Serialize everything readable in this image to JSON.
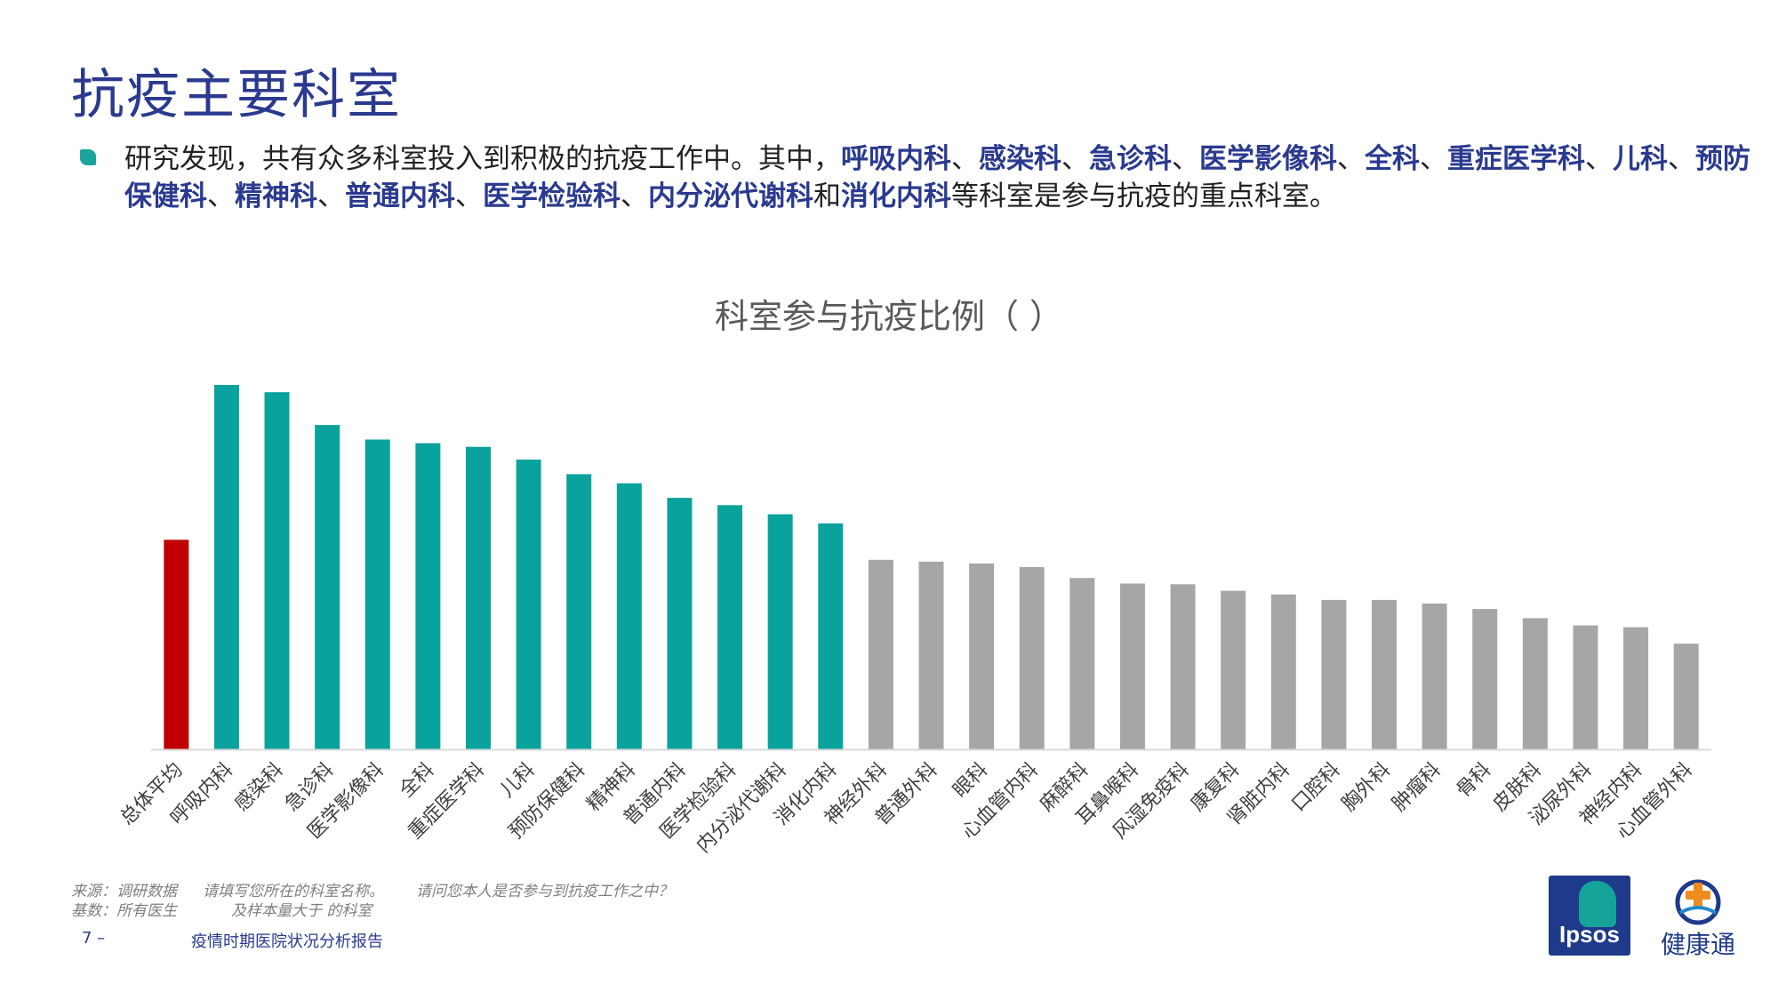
{
  "header": {
    "title": "抗疫主要科室"
  },
  "summary": {
    "p1": "研究发现，共有众多科室投入到积极的抗疫工作中。其中，",
    "h1": "呼吸内科",
    "s1": "、",
    "h2": "感染科",
    "s2": "、",
    "h3": "急诊科",
    "s3": "、",
    "h4": "医学影像科",
    "s4": "、",
    "h5": "全科",
    "s5": "、",
    "h6": "重症医学科",
    "s6": "、",
    "h7": "儿科",
    "s7": "、",
    "h8": "预防保健科",
    "s8": "、",
    "h9": "精神科",
    "s9": "、",
    "h10": "普通内科",
    "s10": "、",
    "h11": "医学检验科",
    "s11": "、",
    "h12": "内分泌代谢科",
    "s12": "和",
    "h13": "消化内科",
    "p2": "等科室是参与抗疫的重点科室。"
  },
  "colors": {
    "average": "#c00000",
    "key": "#0aa29c",
    "other": "#a6a6a6",
    "title": "#2b3a8f",
    "axis": "#d9d9d9"
  },
  "chart_data": {
    "type": "bar",
    "title": "科室参与抗疫比例（ ）",
    "xlabel": "",
    "ylabel": "",
    "ylim": [
      0,
      100
    ],
    "gridlines": false,
    "categories": [
      "总体平均",
      "呼吸内科",
      "感染科",
      "急诊科",
      "医学影像科",
      "全科",
      "重症医学科",
      "儿科",
      "预防保健科",
      "精神科",
      "普通内科",
      "医学检验科",
      "内分泌代谢科",
      "消化内科",
      "神经外科",
      "普通外科",
      "眼科",
      "心血管内科",
      "麻醉科",
      "耳鼻喉科",
      "风湿免疫科",
      "康复科",
      "肾脏内科",
      "口腔科",
      "胸外科",
      "肿瘤科",
      "骨科",
      "皮肤科",
      "泌尿外科",
      "神经内科",
      "心血管外科"
    ],
    "values": [
      57.5,
      100,
      98,
      89,
      85,
      84,
      83,
      79.5,
      75.5,
      73,
      69,
      67,
      64.5,
      62,
      52,
      51.5,
      51,
      50,
      47,
      45.5,
      45.3,
      43.5,
      42.5,
      41,
      41,
      40,
      38.5,
      36,
      34,
      33.5,
      29
    ],
    "groups": [
      "average",
      "key",
      "key",
      "key",
      "key",
      "key",
      "key",
      "key",
      "key",
      "key",
      "key",
      "key",
      "key",
      "key",
      "other",
      "other",
      "other",
      "other",
      "other",
      "other",
      "other",
      "other",
      "other",
      "other",
      "other",
      "other",
      "other",
      "other",
      "other",
      "other",
      "other"
    ]
  },
  "footer": {
    "source_label": "来源：调研数据",
    "source_q1": "请填写您所在的科室名称。",
    "source_q2": "请问您本人是否参与到抗疫工作之中？",
    "base_label": "基数：所有医生",
    "base_note": "及样本量大于  的科室",
    "page_number": "7 –",
    "report_name": "疫情时期医院状况分析报告"
  },
  "logos": {
    "ipsos": "Ipsos",
    "jkt": "健康通"
  }
}
